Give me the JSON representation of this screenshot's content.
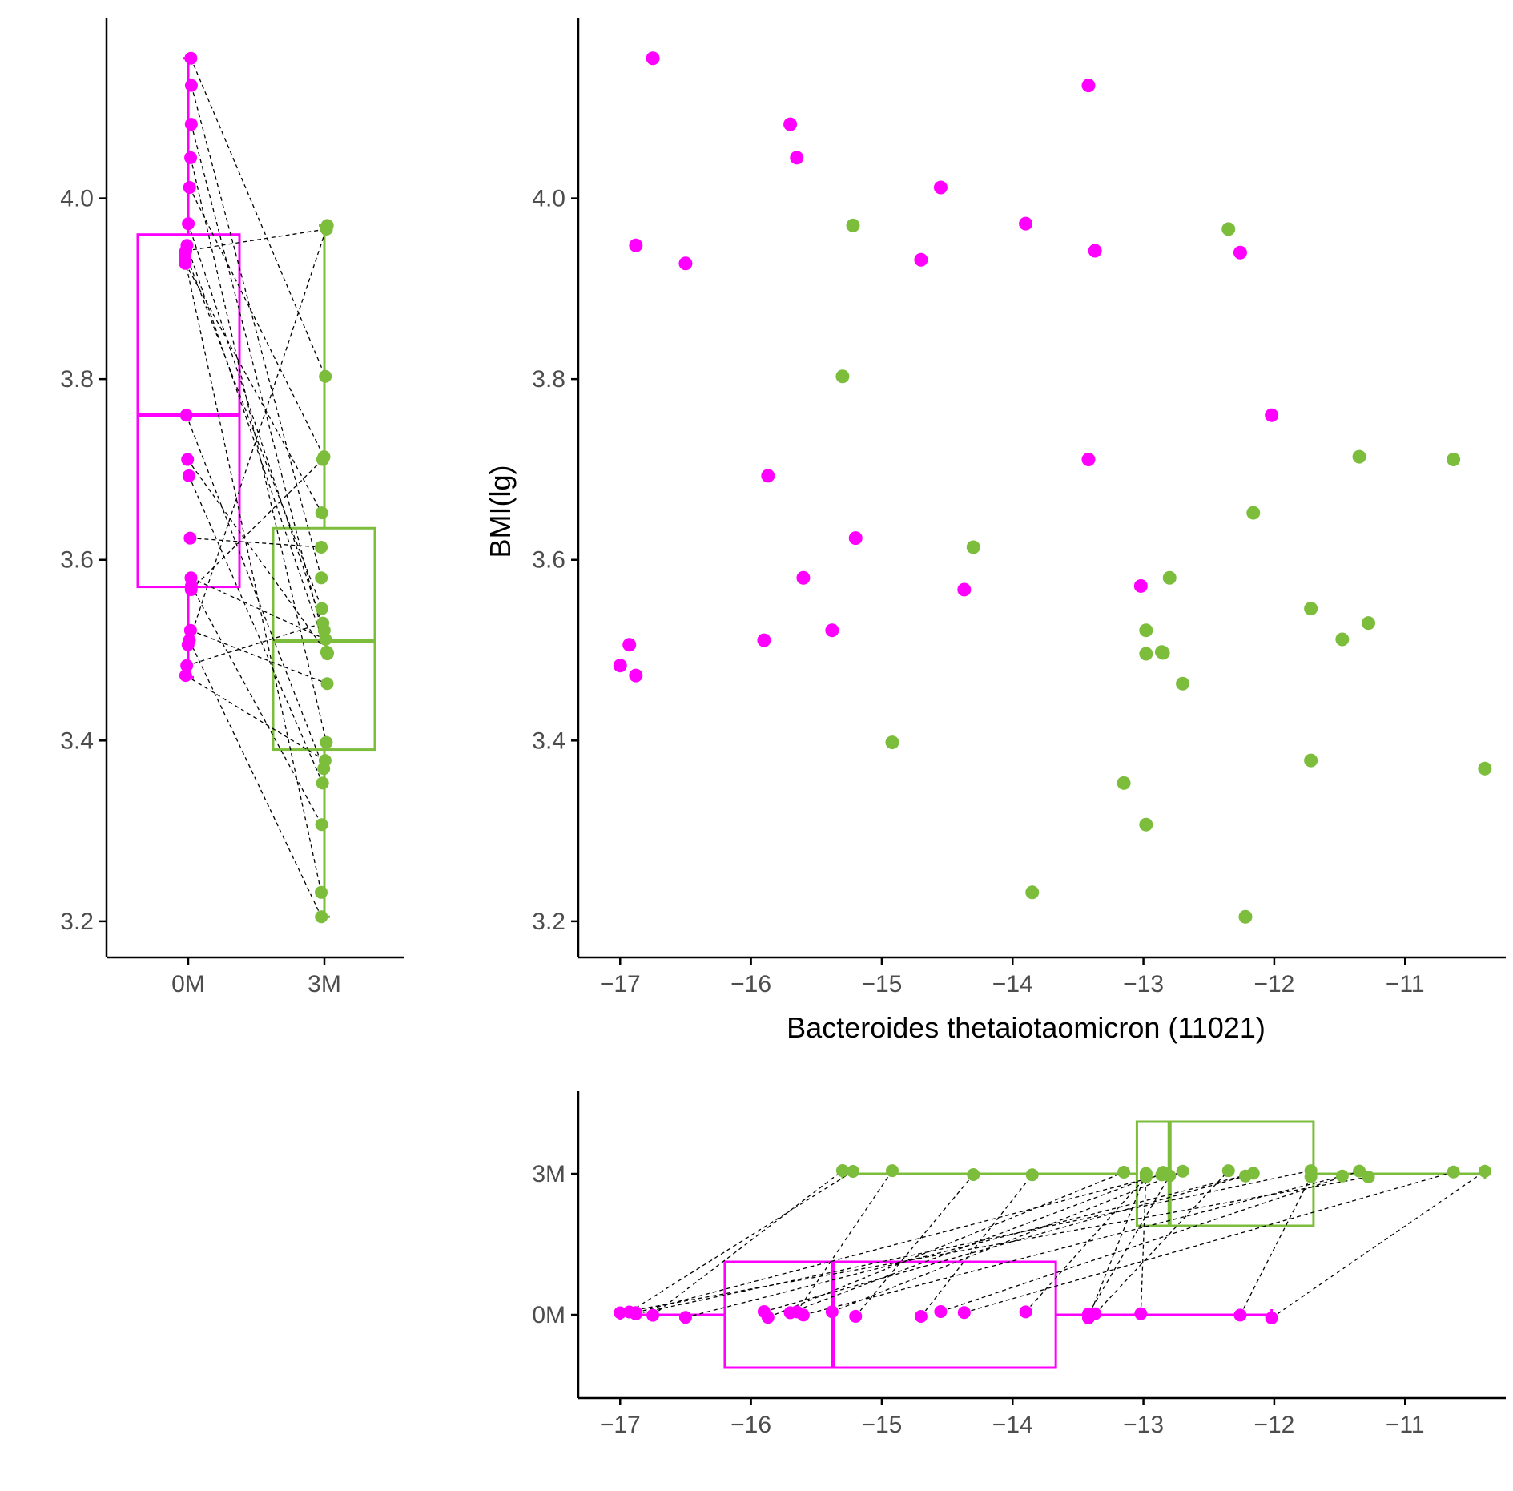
{
  "colors": {
    "group_0M": "#ff00ff",
    "group_3M": "#7cbd3c",
    "pair_line": "#000000",
    "axis": "#000000",
    "tick_text": "#4d4d4d"
  },
  "chart_data": [
    {
      "type": "box",
      "panel": "left-boxplot",
      "categories": [
        "0M",
        "3M"
      ],
      "yticks": [
        "3.2",
        "3.4",
        "3.6",
        "3.8",
        "4.0"
      ],
      "ylim": [
        3.16,
        4.2
      ],
      "box_stats": {
        "0M": {
          "whisker_low": 3.47,
          "q1": 3.57,
          "median": 3.76,
          "q3": 3.96,
          "whisker_high": 4.155
        },
        "3M": {
          "whisker_low": 3.205,
          "q1": 3.39,
          "median": 3.51,
          "q3": 3.635,
          "whisker_high": 3.97
        }
      },
      "points_from": "scatter",
      "paired_lines": "dashed",
      "grid": false
    },
    {
      "type": "scatter",
      "panel": "main-scatter",
      "xlabel": "Bacteroides thetaiotaomicron (11021)",
      "ylabel": "BMI(lg)",
      "xticks": [
        "−17",
        "−16",
        "−15",
        "−14",
        "−13",
        "−12",
        "−11"
      ],
      "yticks": [
        "3.2",
        "3.4",
        "3.6",
        "3.8",
        "4.0"
      ],
      "xlim": [
        -17.32,
        -10.23
      ],
      "ylim": [
        3.16,
        4.2
      ],
      "grid": false,
      "series": [
        {
          "group": "0M",
          "points": [
            [
              -16.75,
              4.155
            ],
            [
              -13.42,
              4.125
            ],
            [
              -15.7,
              4.082
            ],
            [
              -15.65,
              4.045
            ],
            [
              -14.55,
              4.012
            ],
            [
              -13.9,
              3.972
            ],
            [
              -16.88,
              3.948
            ],
            [
              -13.37,
              3.942
            ],
            [
              -12.26,
              3.94
            ],
            [
              -14.7,
              3.932
            ],
            [
              -16.5,
              3.928
            ],
            [
              -12.02,
              3.76
            ],
            [
              -13.42,
              3.711
            ],
            [
              -15.87,
              3.693
            ],
            [
              -15.2,
              3.624
            ],
            [
              -15.6,
              3.58
            ],
            [
              -13.02,
              3.571
            ],
            [
              -14.37,
              3.567
            ],
            [
              -15.38,
              3.522
            ],
            [
              -15.9,
              3.511
            ],
            [
              -16.93,
              3.506
            ],
            [
              -17.0,
              3.483
            ],
            [
              -16.88,
              3.472
            ]
          ]
        },
        {
          "group": "3M",
          "points": [
            [
              -15.22,
              3.97
            ],
            [
              -12.35,
              3.966
            ],
            [
              -15.3,
              3.803
            ],
            [
              -11.35,
              3.714
            ],
            [
              -10.63,
              3.711
            ],
            [
              -12.16,
              3.652
            ],
            [
              -14.3,
              3.614
            ],
            [
              -12.8,
              3.58
            ],
            [
              -11.72,
              3.546
            ],
            [
              -11.28,
              3.53
            ],
            [
              -12.98,
              3.522
            ],
            [
              -11.48,
              3.512
            ],
            [
              -12.86,
              3.498
            ],
            [
              -12.98,
              3.496
            ],
            [
              -12.85,
              3.497
            ],
            [
              -12.7,
              3.463
            ],
            [
              -14.92,
              3.398
            ],
            [
              -11.72,
              3.378
            ],
            [
              -10.39,
              3.369
            ],
            [
              -13.15,
              3.353
            ],
            [
              -12.98,
              3.307
            ],
            [
              -13.85,
              3.232
            ],
            [
              -12.22,
              3.205
            ]
          ]
        }
      ],
      "pairs": [
        [
          0,
          2
        ],
        [
          1,
          7
        ],
        [
          2,
          14
        ],
        [
          3,
          16
        ],
        [
          4,
          3
        ],
        [
          5,
          10
        ],
        [
          6,
          12
        ],
        [
          7,
          1
        ],
        [
          8,
          8
        ],
        [
          9,
          21
        ],
        [
          10,
          5
        ],
        [
          11,
          18
        ],
        [
          12,
          13
        ],
        [
          13,
          19
        ],
        [
          14,
          6
        ],
        [
          15,
          11
        ],
        [
          16,
          20
        ],
        [
          17,
          4
        ],
        [
          18,
          15
        ],
        [
          19,
          22
        ],
        [
          20,
          0
        ],
        [
          21,
          9
        ],
        [
          22,
          17
        ]
      ]
    },
    {
      "type": "box",
      "panel": "bottom-boxplot",
      "orientation": "horizontal",
      "categories": [
        "0M",
        "3M"
      ],
      "xticks": [
        "−17",
        "−16",
        "−15",
        "−14",
        "−13",
        "−12",
        "−11"
      ],
      "xlim": [
        -17.32,
        -10.23
      ],
      "box_stats": {
        "0M": {
          "whisker_low": -17.0,
          "q1": -16.2,
          "median": -15.37,
          "q3": -13.67,
          "whisker_high": -12.02
        },
        "3M": {
          "whisker_low": -15.3,
          "q1": -13.05,
          "median": -12.8,
          "q3": -11.7,
          "whisker_high": -10.39
        }
      },
      "points_from": "scatter",
      "paired_lines": "dashed",
      "grid": false
    }
  ]
}
